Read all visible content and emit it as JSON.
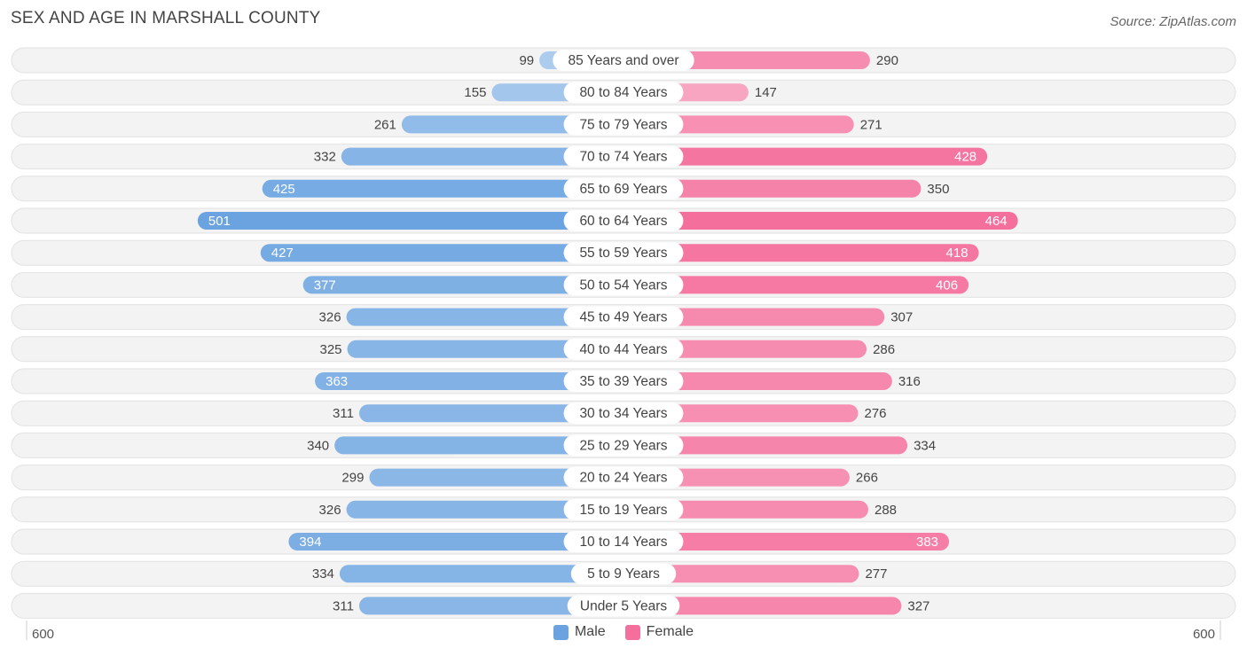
{
  "title": "SEX AND AGE IN MARSHALL COUNTY",
  "source": "Source: ZipAtlas.com",
  "chart_data": {
    "type": "bar",
    "orientation": "horizontal-diverging",
    "categories": [
      "85 Years and over",
      "80 to 84 Years",
      "75 to 79 Years",
      "70 to 74 Years",
      "65 to 69 Years",
      "60 to 64 Years",
      "55 to 59 Years",
      "50 to 54 Years",
      "45 to 49 Years",
      "40 to 44 Years",
      "35 to 39 Years",
      "30 to 34 Years",
      "25 to 29 Years",
      "20 to 24 Years",
      "15 to 19 Years",
      "10 to 14 Years",
      "5 to 9 Years",
      "Under 5 Years"
    ],
    "series": [
      {
        "name": "Male",
        "color": "#6aa3e0",
        "values": [
          99,
          155,
          261,
          332,
          425,
          501,
          427,
          377,
          326,
          325,
          363,
          311,
          340,
          299,
          326,
          394,
          334,
          311
        ]
      },
      {
        "name": "Female",
        "color": "#f46f9c",
        "values": [
          290,
          147,
          271,
          428,
          350,
          464,
          418,
          406,
          307,
          286,
          316,
          276,
          334,
          266,
          288,
          383,
          277,
          327
        ]
      }
    ],
    "axis_min_label": "600",
    "axis_max_label": "600",
    "xlim": [
      -600,
      600
    ],
    "legend": "bottom-center"
  }
}
